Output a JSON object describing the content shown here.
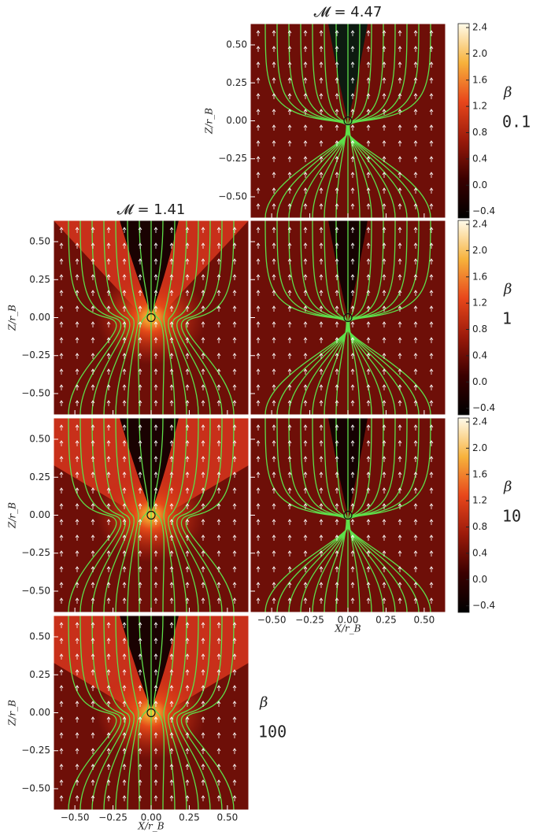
{
  "chart_data": {
    "type": "image-grid",
    "column_titles": [
      "𝓜 = 1.41",
      "𝓜 = 4.47"
    ],
    "row_symbol": "β",
    "row_labels": [
      "0.1",
      "1",
      "10",
      "100"
    ],
    "xlabel": "X/r_B",
    "ylabel": "Z/r_B",
    "xlim": [
      -0.64,
      0.64
    ],
    "ylim": [
      -0.64,
      0.64
    ],
    "xticks": [
      {
        "value": -0.5,
        "label": "−0.50"
      },
      {
        "value": -0.25,
        "label": "−0.25"
      },
      {
        "value": 0,
        "label": "0.00"
      },
      {
        "value": 0.25,
        "label": "0.25"
      },
      {
        "value": 0.5,
        "label": "0.50"
      }
    ],
    "yticks": [
      {
        "value": -0.5,
        "label": "−0.50"
      },
      {
        "value": -0.25,
        "label": "−0.25"
      },
      {
        "value": 0,
        "label": "0.00"
      },
      {
        "value": 0.25,
        "label": "0.25"
      },
      {
        "value": 0.5,
        "label": "0.50"
      }
    ],
    "colorbar": {
      "lim": [
        -0.5,
        2.46
      ],
      "ticks": [
        {
          "value": -0.4,
          "label": "−0.4"
        },
        {
          "value": 0,
          "label": "0.0"
        },
        0.4,
        0.8,
        1.2,
        1.6,
        {
          "value": 2,
          "label": "2.0"
        },
        2.4
      ]
    }
  }
}
